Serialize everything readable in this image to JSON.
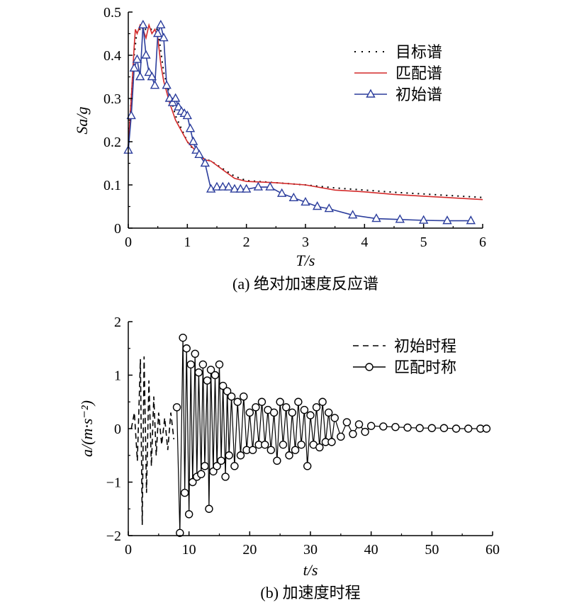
{
  "chart_data": [
    {
      "type": "line",
      "caption": "(a) 绝对加速度反应谱",
      "xlabel": "T/s",
      "ylabel": "Sa/g",
      "xlim": [
        0,
        6
      ],
      "ylim": [
        0,
        0.5
      ],
      "xticks": [
        "0",
        "1",
        "2",
        "3",
        "4",
        "5",
        "6"
      ],
      "yticks": [
        "0",
        "0.1",
        "0.2",
        "0.3",
        "0.4",
        "0.5"
      ],
      "legend_position": "top-right",
      "series": [
        {
          "name": "目标谱",
          "style": "dotted",
          "color": "#000000",
          "x": [
            0,
            0.05,
            0.1,
            0.15,
            0.2,
            0.5,
            0.6,
            0.8,
            1.0,
            1.2,
            1.4,
            1.8,
            2.0,
            2.5,
            3.0,
            3.5,
            4.0,
            4.5,
            5.0,
            5.5,
            6.0
          ],
          "y": [
            0.19,
            0.3,
            0.4,
            0.46,
            0.46,
            0.46,
            0.36,
            0.26,
            0.2,
            0.165,
            0.155,
            0.12,
            0.11,
            0.105,
            0.1,
            0.093,
            0.088,
            0.083,
            0.079,
            0.075,
            0.071
          ]
        },
        {
          "name": "匹配谱",
          "style": "solid",
          "color": "#d42a2a",
          "x": [
            0,
            0.05,
            0.1,
            0.12,
            0.15,
            0.2,
            0.25,
            0.3,
            0.35,
            0.4,
            0.45,
            0.5,
            0.55,
            0.6,
            0.7,
            0.8,
            1.0,
            1.2,
            1.3,
            1.4,
            1.6,
            1.8,
            2.0,
            2.5,
            3.0,
            3.5,
            4.0,
            4.5,
            5.0,
            5.5,
            6.0
          ],
          "y": [
            0.19,
            0.3,
            0.42,
            0.46,
            0.45,
            0.47,
            0.46,
            0.44,
            0.47,
            0.45,
            0.46,
            0.44,
            0.38,
            0.34,
            0.29,
            0.25,
            0.2,
            0.17,
            0.158,
            0.155,
            0.135,
            0.115,
            0.108,
            0.105,
            0.1,
            0.088,
            0.084,
            0.078,
            0.074,
            0.07,
            0.066
          ]
        },
        {
          "name": "初始谱",
          "style": "solid-triangle",
          "color": "#2b3d9c",
          "x": [
            0,
            0.05,
            0.1,
            0.15,
            0.2,
            0.25,
            0.3,
            0.35,
            0.4,
            0.45,
            0.5,
            0.55,
            0.6,
            0.65,
            0.7,
            0.75,
            0.8,
            0.85,
            0.9,
            0.95,
            1.0,
            1.05,
            1.1,
            1.15,
            1.2,
            1.3,
            1.4,
            1.5,
            1.6,
            1.7,
            1.8,
            1.9,
            2.0,
            2.2,
            2.4,
            2.6,
            2.8,
            3.0,
            3.2,
            3.4,
            3.8,
            4.2,
            4.6,
            5.0,
            5.4,
            5.8
          ],
          "y": [
            0.18,
            0.26,
            0.37,
            0.39,
            0.35,
            0.47,
            0.4,
            0.36,
            0.35,
            0.33,
            0.45,
            0.47,
            0.44,
            0.33,
            0.3,
            0.29,
            0.3,
            0.28,
            0.27,
            0.265,
            0.26,
            0.23,
            0.2,
            0.18,
            0.17,
            0.15,
            0.09,
            0.095,
            0.095,
            0.095,
            0.09,
            0.09,
            0.09,
            0.095,
            0.095,
            0.08,
            0.07,
            0.06,
            0.05,
            0.045,
            0.03,
            0.022,
            0.02,
            0.018,
            0.017,
            0.017
          ]
        }
      ]
    },
    {
      "type": "line",
      "caption": "(b) 加速度时程",
      "xlabel": "t/s",
      "ylabel": "a/(m·s⁻²)",
      "xlim": [
        0,
        60
      ],
      "ylim": [
        -2,
        2
      ],
      "xticks": [
        "0",
        "10",
        "20",
        "30",
        "40",
        "50",
        "60"
      ],
      "yticks": [
        "−2",
        "−1",
        "0",
        "1",
        "2"
      ],
      "legend_position": "top-right",
      "series": [
        {
          "name": "初始时程",
          "style": "dashed",
          "color": "#000000",
          "x": [
            0.5,
            1.0,
            1.5,
            2.0,
            2.3,
            2.6,
            3.0,
            3.4,
            3.8,
            4.2,
            4.6,
            5.0,
            5.5,
            6.0,
            6.5,
            7.0,
            7.5
          ],
          "y": [
            0,
            0.3,
            -0.6,
            1.3,
            -1.8,
            1.35,
            -1.2,
            0.9,
            -0.7,
            0.6,
            -0.5,
            0.3,
            -0.3,
            0.2,
            -0.4,
            0.3,
            -0.2
          ]
        },
        {
          "name": "匹配时称",
          "style": "solid-circle",
          "color": "#000000",
          "x": [
            8.0,
            8.5,
            9.0,
            9.3,
            9.6,
            10.0,
            10.3,
            10.6,
            11.0,
            11.3,
            11.6,
            12.0,
            12.3,
            12.6,
            13.0,
            13.3,
            13.6,
            14.0,
            14.3,
            14.6,
            15.0,
            15.3,
            15.6,
            16.0,
            16.3,
            16.6,
            17.0,
            17.5,
            18.0,
            18.5,
            19.0,
            19.5,
            20.0,
            20.5,
            21.0,
            21.5,
            22.0,
            22.5,
            23.0,
            23.5,
            24.0,
            24.5,
            25.0,
            25.5,
            26.0,
            26.5,
            27.0,
            27.5,
            28.0,
            28.5,
            29.0,
            29.5,
            30.0,
            30.5,
            31.0,
            31.5,
            32.0,
            32.5,
            33.0,
            33.5,
            34.0,
            35.0,
            36.0,
            37.0,
            38.0,
            39.0,
            40.0,
            42.0,
            44.0,
            46.0,
            48.0,
            50.0,
            52.0,
            54.0,
            56.0,
            58.0,
            59.0
          ],
          "y": [
            0.4,
            -1.95,
            1.7,
            -1.2,
            1.5,
            -1.6,
            1.2,
            -1.0,
            1.4,
            -0.9,
            1.05,
            -0.85,
            1.2,
            -0.7,
            0.9,
            -1.5,
            1.1,
            -0.8,
            1.0,
            -0.7,
            1.2,
            -0.6,
            0.8,
            -0.9,
            0.7,
            -0.5,
            0.6,
            -0.7,
            0.5,
            -0.5,
            0.6,
            -0.4,
            0.3,
            -0.4,
            0.4,
            -0.3,
            0.5,
            -0.3,
            0.35,
            -0.4,
            0.3,
            -0.6,
            0.5,
            -0.3,
            0.4,
            -0.5,
            0.3,
            -0.4,
            0.5,
            -0.3,
            0.35,
            -0.7,
            0.25,
            -0.3,
            0.4,
            -0.35,
            0.5,
            -0.25,
            0.3,
            -0.25,
            0.2,
            -0.15,
            0.12,
            -0.1,
            0.08,
            -0.06,
            0.05,
            0.04,
            0.03,
            0.02,
            0.01,
            0.01,
            0.01,
            0.0,
            0.0,
            0.0,
            0.0
          ]
        }
      ]
    }
  ]
}
